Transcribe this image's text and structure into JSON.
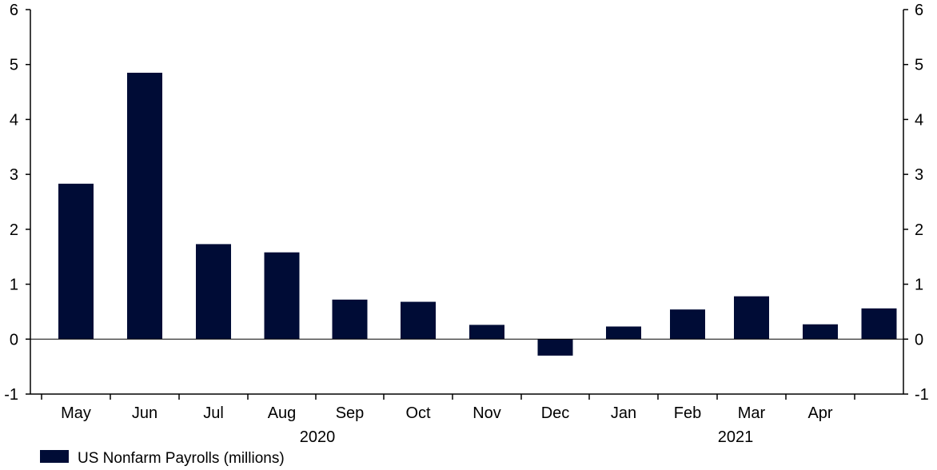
{
  "chart_data": {
    "type": "bar",
    "categories": [
      "May",
      "Jun",
      "Jul",
      "Aug",
      "Sep",
      "Oct",
      "Nov",
      "Dec",
      "Jan",
      "Feb",
      "Mar",
      "Apr",
      ""
    ],
    "year_labels": [
      {
        "label": "2020",
        "span": [
          "May",
          "Dec"
        ]
      },
      {
        "label": "2021",
        "span": [
          "Jan",
          ""
        ]
      }
    ],
    "series": [
      {
        "name": "US Nonfarm Payrolls (millions)",
        "color": "#000c36",
        "values": [
          2.83,
          4.85,
          1.73,
          1.58,
          0.72,
          0.68,
          0.26,
          -0.3,
          0.23,
          0.54,
          0.78,
          0.27,
          0.56
        ]
      }
    ],
    "ylim": [
      -1,
      6
    ],
    "yticks": [
      -1,
      0,
      1,
      2,
      3,
      4,
      5,
      6
    ],
    "left_axis": true,
    "right_axis": true,
    "grid": false,
    "legend_position": "bottom-left"
  }
}
